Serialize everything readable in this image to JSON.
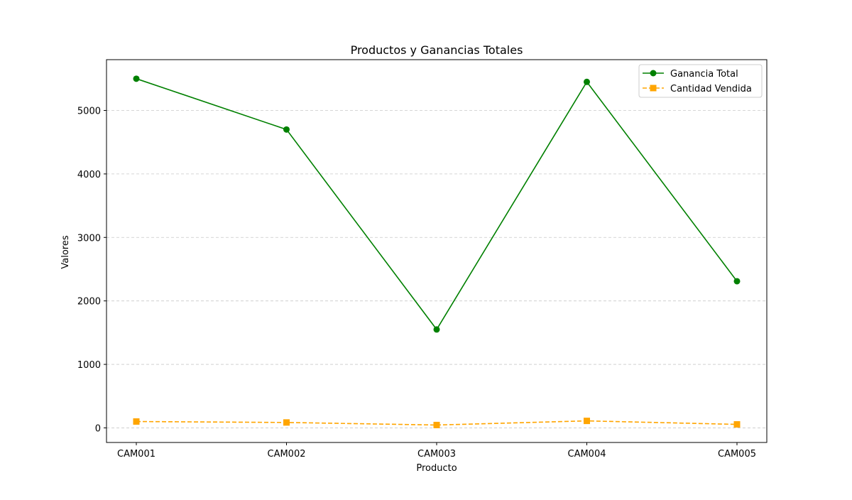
{
  "chart_data": {
    "type": "line",
    "title": "Productos y Ganancias Totales",
    "xlabel": "Producto",
    "ylabel": "Valores",
    "categories": [
      "CAM001",
      "CAM002",
      "CAM003",
      "CAM004",
      "CAM005"
    ],
    "ylim": [
      -230,
      5800
    ],
    "yticks": [
      0,
      1000,
      2000,
      3000,
      4000,
      5000
    ],
    "grid": "y-dashed",
    "legend_position": "top-right",
    "series": [
      {
        "name": "Ganancia Total",
        "values": [
          5500,
          4700,
          1550,
          5450,
          2310
        ],
        "color": "#008000",
        "line_style": "solid",
        "marker": "circle"
      },
      {
        "name": "Cantidad Vendida",
        "values": [
          100,
          85,
          45,
          110,
          55
        ],
        "color": "#FFA500",
        "line_style": "dashed",
        "marker": "square"
      }
    ]
  }
}
